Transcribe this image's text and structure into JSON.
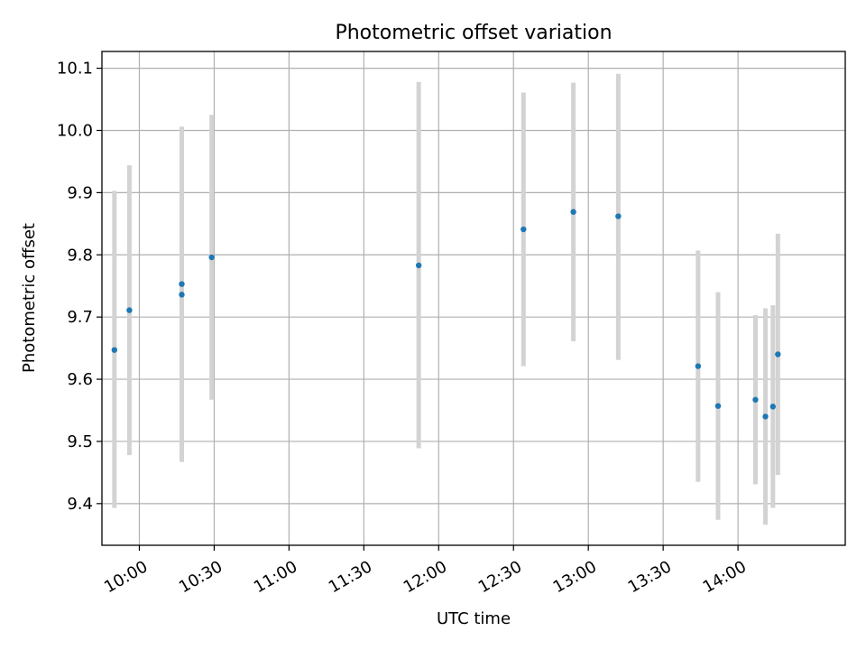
{
  "chart_data": {
    "type": "scatter",
    "title": "Photometric offset variation",
    "xlabel": "UTC time",
    "ylabel": "Photometric offset",
    "xlim": [
      "09:45",
      "14:43"
    ],
    "ylim": [
      9.333,
      10.127
    ],
    "xticks": [
      "10:00",
      "10:30",
      "11:00",
      "11:30",
      "12:00",
      "12:30",
      "13:00",
      "13:30",
      "14:00"
    ],
    "yticks": [
      "9.4",
      "9.5",
      "9.6",
      "9.7",
      "9.8",
      "9.9",
      "10.0",
      "10.1"
    ],
    "grid": true,
    "colors": {
      "point": "#1f77b4",
      "error_bar": "#d3d3d3"
    },
    "points": [
      {
        "x": "09:50",
        "y": 9.647,
        "ylo": 9.393,
        "yhi": 9.903
      },
      {
        "x": "09:56",
        "y": 9.711,
        "ylo": 9.478,
        "yhi": 9.944
      },
      {
        "x": "10:17",
        "y": 9.736,
        "ylo": 9.467,
        "yhi": 10.006
      },
      {
        "x": "10:17",
        "y": 9.753,
        "ylo": 9.467,
        "yhi": 10.006
      },
      {
        "x": "10:29",
        "y": 9.796,
        "ylo": 9.567,
        "yhi": 10.025
      },
      {
        "x": "11:52",
        "y": 9.783,
        "ylo": 9.489,
        "yhi": 10.078
      },
      {
        "x": "12:34",
        "y": 9.841,
        "ylo": 9.621,
        "yhi": 10.061
      },
      {
        "x": "12:54",
        "y": 9.869,
        "ylo": 9.661,
        "yhi": 10.077
      },
      {
        "x": "13:12",
        "y": 9.862,
        "ylo": 9.631,
        "yhi": 10.091
      },
      {
        "x": "13:44",
        "y": 9.621,
        "ylo": 9.435,
        "yhi": 9.807
      },
      {
        "x": "13:52",
        "y": 9.557,
        "ylo": 9.374,
        "yhi": 9.74
      },
      {
        "x": "14:07",
        "y": 9.567,
        "ylo": 9.431,
        "yhi": 9.703
      },
      {
        "x": "14:11",
        "y": 9.54,
        "ylo": 9.366,
        "yhi": 9.714
      },
      {
        "x": "14:14",
        "y": 9.556,
        "ylo": 9.393,
        "yhi": 9.719
      },
      {
        "x": "14:16",
        "y": 9.64,
        "ylo": 9.446,
        "yhi": 9.834
      }
    ]
  }
}
